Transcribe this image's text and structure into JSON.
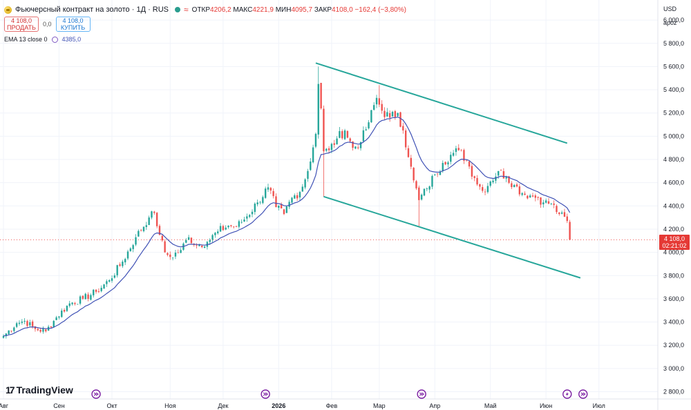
{
  "header": {
    "title": "Фьючерсный контракт на золото · 1Д · RUS",
    "symbol_icon": "gold-coin-icon",
    "open_label": "ОТКР",
    "open_value": "4206,2",
    "high_label": "МАКС",
    "high_value": "4221,9",
    "low_label": "МИН",
    "low_value": "4095,7",
    "close_label": "ЗАКР",
    "close_value": "4108,0",
    "change": "−162,4 (−3,80%)"
  },
  "trade": {
    "sell_price": "4 108,0",
    "sell_label": "ПРОДАТЬ",
    "spread": "0,0",
    "buy_price": "4 108,0",
    "buy_label": "КУПИТЬ"
  },
  "indicator": {
    "label": "EMA 13 close 0",
    "value": "4385,0"
  },
  "axis": {
    "currency": "USD",
    "mode": "apoz"
  },
  "price_badge": {
    "price": "4 108,0",
    "countdown": "02:21:02"
  },
  "logo": {
    "text": "TradingView"
  },
  "colors": {
    "up": "#26a69a",
    "down": "#ef5350",
    "ema": "#3f51b5",
    "channel": "#26a69a"
  },
  "chart_data": {
    "type": "candlestick",
    "y_ticks": [
      {
        "value": 2800,
        "label": "2 800,0"
      },
      {
        "value": 3000,
        "label": "3 000,0"
      },
      {
        "value": 3200,
        "label": "3 200,0"
      },
      {
        "value": 3400,
        "label": "3 400,0"
      },
      {
        "value": 3600,
        "label": "3 600,0"
      },
      {
        "value": 3800,
        "label": "3 800,0"
      },
      {
        "value": 4000,
        "label": "4 000,0"
      },
      {
        "value": 4200,
        "label": "4 200,0"
      },
      {
        "value": 4400,
        "label": "4 400,0"
      },
      {
        "value": 4600,
        "label": "4 600,0"
      },
      {
        "value": 4800,
        "label": "4 800,0"
      },
      {
        "value": 5000,
        "label": "5 000,0"
      },
      {
        "value": 5200,
        "label": "5 200,0"
      },
      {
        "value": 5400,
        "label": "5 400,0"
      },
      {
        "value": 5600,
        "label": "5 600,0"
      },
      {
        "value": 5800,
        "label": "5 800,0"
      },
      {
        "value": 6000,
        "label": "6 000,0"
      }
    ],
    "x_ticks": [
      {
        "label": "Авг",
        "index": 0
      },
      {
        "label": "Сен",
        "index": 21
      },
      {
        "label": "Окт",
        "index": 41
      },
      {
        "label": "Ноя",
        "index": 63
      },
      {
        "label": "Дек",
        "index": 83
      },
      {
        "label": "2026",
        "index": 104
      },
      {
        "label": "Фев",
        "index": 124
      },
      {
        "label": "Мар",
        "index": 142
      },
      {
        "label": "Апр",
        "index": 163
      },
      {
        "label": "Май",
        "index": 184
      },
      {
        "label": "Июн",
        "index": 205
      },
      {
        "label": "Июл",
        "index": 225
      }
    ],
    "last_price": 4108.0,
    "ema_period": 13,
    "channel": [
      {
        "name": "upper",
        "from": {
          "index": 118,
          "price": 5630
        },
        "to": {
          "index": 213,
          "price": 4940
        }
      },
      {
        "name": "lower",
        "from": {
          "index": 121,
          "price": 4480
        },
        "to": {
          "index": 218,
          "price": 3780
        }
      }
    ],
    "event_markers": [
      {
        "icon": "forward-icon",
        "index": 35
      },
      {
        "icon": "forward-icon",
        "index": 99
      },
      {
        "icon": "forward-icon",
        "index": 158
      },
      {
        "icon": "lightning-icon",
        "index": 213
      },
      {
        "icon": "forward-icon",
        "index": 219
      }
    ],
    "keyframes": [
      [
        0,
        3280
      ],
      [
        5,
        3390
      ],
      [
        8,
        3410
      ],
      [
        12,
        3340
      ],
      [
        16,
        3320
      ],
      [
        20,
        3440
      ],
      [
        25,
        3560
      ],
      [
        30,
        3600
      ],
      [
        35,
        3660
      ],
      [
        40,
        3760
      ],
      [
        45,
        3920
      ],
      [
        50,
        4130
      ],
      [
        55,
        4300
      ],
      [
        57,
        4340
      ],
      [
        59,
        4150
      ],
      [
        61,
        4000
      ],
      [
        63,
        3960
      ],
      [
        67,
        4020
      ],
      [
        70,
        4130
      ],
      [
        73,
        4060
      ],
      [
        77,
        4090
      ],
      [
        81,
        4180
      ],
      [
        85,
        4230
      ],
      [
        88,
        4220
      ],
      [
        92,
        4310
      ],
      [
        96,
        4430
      ],
      [
        100,
        4560
      ],
      [
        103,
        4390
      ],
      [
        106,
        4330
      ],
      [
        109,
        4470
      ],
      [
        112,
        4520
      ],
      [
        115,
        4700
      ],
      [
        118,
        5020
      ],
      [
        119,
        5450
      ],
      [
        120,
        5240
      ],
      [
        121,
        4870
      ],
      [
        123,
        4880
      ],
      [
        126,
        4980
      ],
      [
        129,
        5050
      ],
      [
        132,
        4900
      ],
      [
        135,
        4950
      ],
      [
        138,
        5120
      ],
      [
        141,
        5330
      ],
      [
        143,
        5220
      ],
      [
        146,
        5160
      ],
      [
        149,
        5200
      ],
      [
        151,
        5050
      ],
      [
        153,
        4820
      ],
      [
        155,
        4620
      ],
      [
        157,
        4450
      ],
      [
        160,
        4550
      ],
      [
        163,
        4670
      ],
      [
        166,
        4770
      ],
      [
        169,
        4840
      ],
      [
        172,
        4880
      ],
      [
        175,
        4790
      ],
      [
        178,
        4640
      ],
      [
        181,
        4530
      ],
      [
        184,
        4610
      ],
      [
        187,
        4700
      ],
      [
        190,
        4650
      ],
      [
        193,
        4580
      ],
      [
        196,
        4510
      ],
      [
        199,
        4490
      ],
      [
        202,
        4470
      ],
      [
        204,
        4430
      ],
      [
        207,
        4420
      ],
      [
        210,
        4330
      ],
      [
        213,
        4270
      ],
      [
        214,
        4108
      ]
    ]
  }
}
